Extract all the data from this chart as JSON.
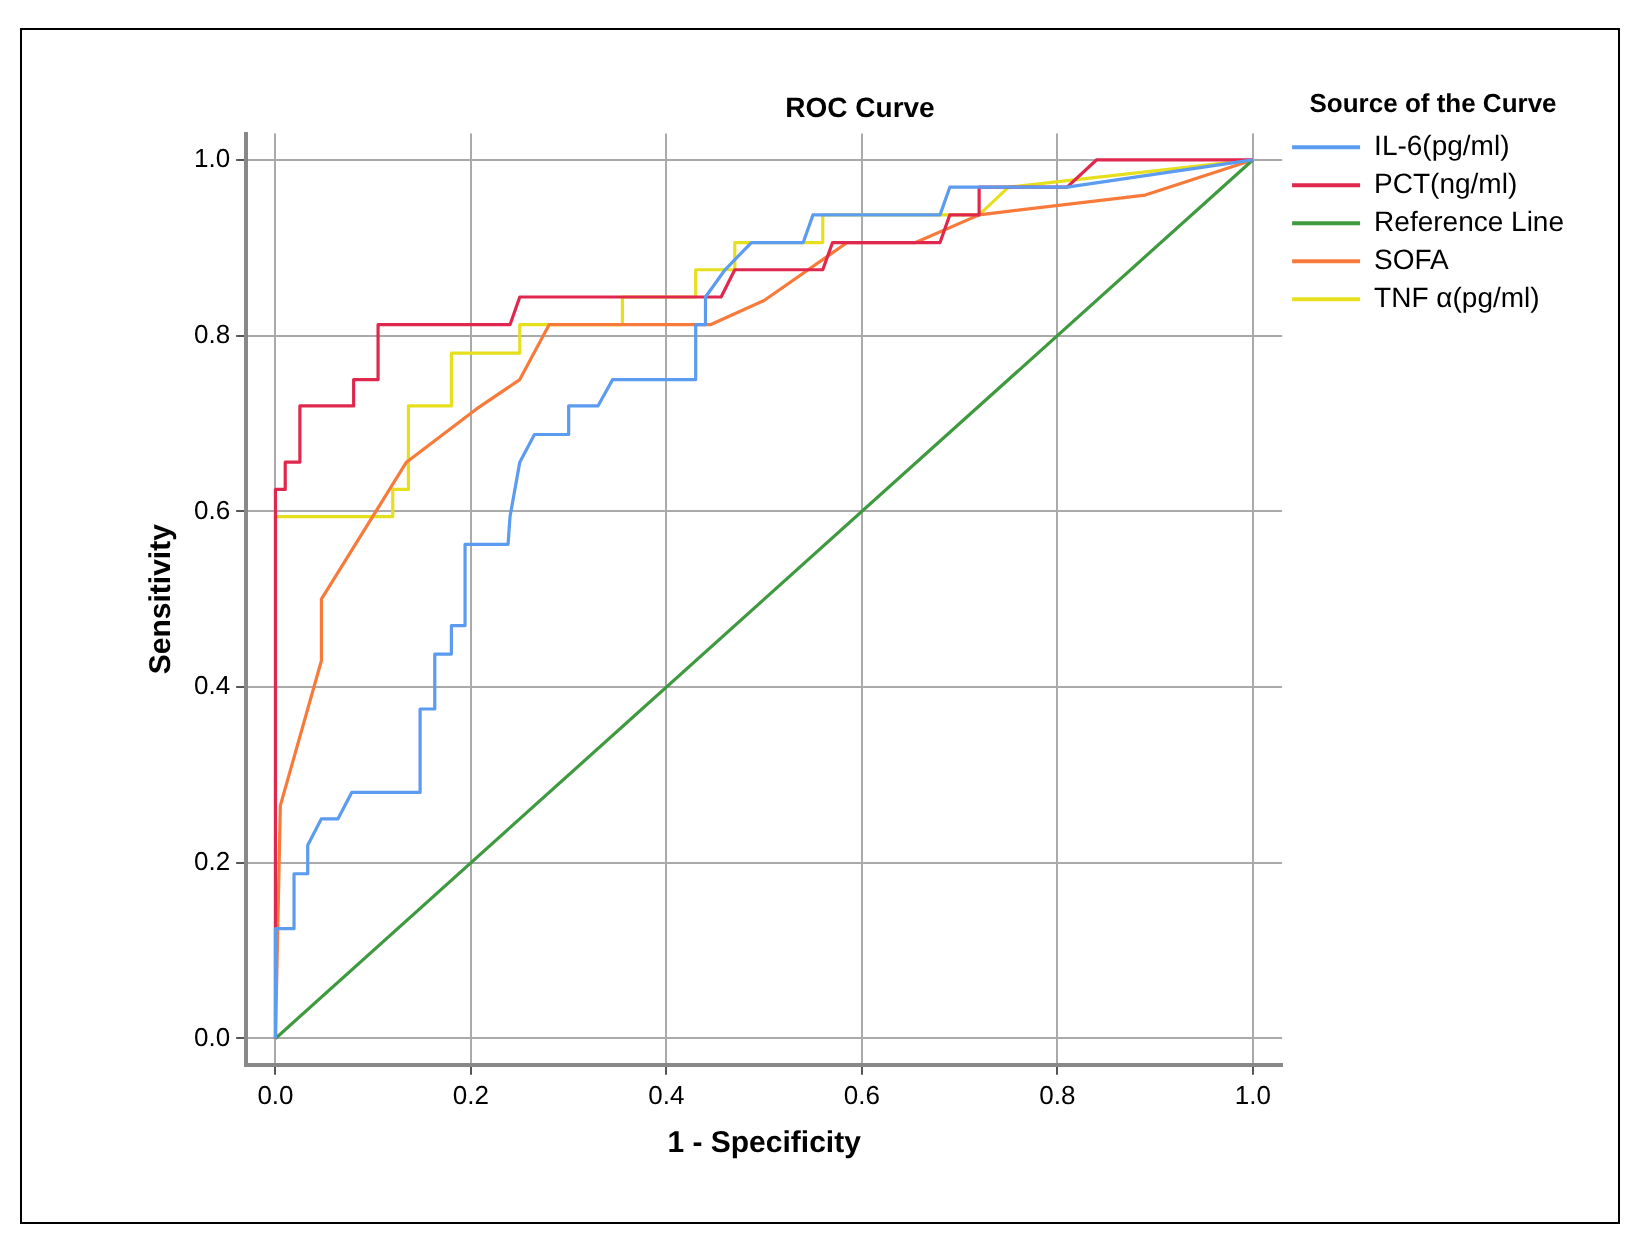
{
  "chart_data": {
    "type": "line",
    "title": "ROC Curve",
    "xlabel": "1 - Specificity",
    "ylabel": "Sensitivity",
    "legend_title": "Source of the Curve",
    "legend": "right",
    "grid": true,
    "marker": "none",
    "line_style": "solid",
    "xlim": [
      -0.03,
      1.03
    ],
    "ylim": [
      -0.03,
      1.03
    ],
    "xticks": [
      {
        "value": 0,
        "label": "0.0"
      },
      {
        "value": 0.2,
        "label": "0.2"
      },
      {
        "value": 0.4,
        "label": "0.4"
      },
      {
        "value": 0.6,
        "label": "0.6"
      },
      {
        "value": 0.8,
        "label": "0.8"
      },
      {
        "value": 1,
        "label": "1.0"
      }
    ],
    "yticks": [
      {
        "value": 0,
        "label": "0.0"
      },
      {
        "value": 0.2,
        "label": "0.2"
      },
      {
        "value": 0.4,
        "label": "0.4"
      },
      {
        "value": 0.6,
        "label": "0.6"
      },
      {
        "value": 0.8,
        "label": "0.8"
      },
      {
        "value": 1,
        "label": "1.0"
      }
    ],
    "series": [
      {
        "name": "IL-6(pg/ml)",
        "color": "#5b9bf0",
        "x": [
          0,
          0,
          0.019,
          0.019,
          0.033,
          0.033,
          0.047,
          0.064,
          0.078,
          0.148,
          0.148,
          0.163,
          0.163,
          0.18,
          0.18,
          0.194,
          0.194,
          0.238,
          0.24,
          0.245,
          0.25,
          0.265,
          0.3,
          0.3,
          0.33,
          0.345,
          0.43,
          0.43,
          0.44,
          0.44,
          0.46,
          0.487,
          0.54,
          0.55,
          0.68,
          0.69,
          0.81,
          1
        ],
        "values": [
          0,
          0.125,
          0.125,
          0.1875,
          0.1875,
          0.22,
          0.25,
          0.25,
          0.28,
          0.28,
          0.375,
          0.375,
          0.4375,
          0.4375,
          0.47,
          0.47,
          0.5625,
          0.5625,
          0.594,
          0.625,
          0.656,
          0.6875,
          0.6875,
          0.72,
          0.72,
          0.75,
          0.75,
          0.8125,
          0.8125,
          0.844,
          0.875,
          0.906,
          0.906,
          0.9375,
          0.9375,
          0.969,
          0.969,
          1
        ]
      },
      {
        "name": "PCT(ng/ml)",
        "color": "#e0284e",
        "x": [
          0,
          0,
          0.01,
          0.01,
          0.025,
          0.025,
          0.08,
          0.08,
          0.105,
          0.105,
          0.24,
          0.25,
          0.456,
          0.47,
          0.56,
          0.57,
          0.68,
          0.69,
          0.72,
          0.72,
          0.81,
          0.84,
          1
        ],
        "values": [
          0,
          0.625,
          0.625,
          0.656,
          0.656,
          0.72,
          0.72,
          0.75,
          0.75,
          0.8125,
          0.8125,
          0.844,
          0.844,
          0.875,
          0.875,
          0.906,
          0.906,
          0.9375,
          0.9375,
          0.969,
          0.969,
          1,
          1
        ]
      },
      {
        "name": "Reference Line",
        "color": "#3f9a3f",
        "x": [
          0,
          1
        ],
        "values": [
          0,
          1
        ]
      },
      {
        "name": "SOFA",
        "color": "#f87a3a",
        "x": [
          0,
          0.005,
          0.047,
          0.047,
          0.134,
          0.205,
          0.25,
          0.28,
          0.445,
          0.5,
          0.585,
          0.655,
          0.72,
          0.89,
          1
        ],
        "values": [
          0,
          0.265,
          0.43,
          0.5,
          0.656,
          0.716,
          0.75,
          0.8125,
          0.8125,
          0.84,
          0.906,
          0.906,
          0.9375,
          0.96,
          1
        ]
      },
      {
        "name": "TNF α(pg/ml)",
        "color": "#e6df1e",
        "x": [
          0,
          0,
          0.12,
          0.12,
          0.136,
          0.136,
          0.18,
          0.18,
          0.25,
          0.25,
          0.355,
          0.355,
          0.43,
          0.43,
          0.47,
          0.47,
          0.56,
          0.56,
          0.72,
          0.75,
          1
        ],
        "values": [
          0,
          0.594,
          0.594,
          0.625,
          0.625,
          0.72,
          0.72,
          0.78,
          0.78,
          0.8125,
          0.8125,
          0.844,
          0.844,
          0.875,
          0.875,
          0.906,
          0.906,
          0.9375,
          0.9375,
          0.969,
          1
        ]
      }
    ]
  }
}
